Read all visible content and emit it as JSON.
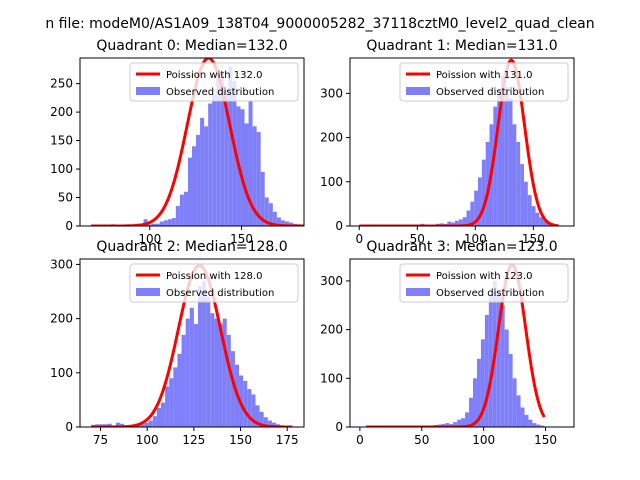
{
  "figure": {
    "suptitle": "n file: modeM0/AS1A09_138T04_9000005282_37118cztM0_level2_quad_clean"
  },
  "colors": {
    "hist": "#7f7ff9",
    "fit": "#ff0000",
    "fit_alpha_peak": "#f08080"
  },
  "chart_data": [
    {
      "type": "histogram+line",
      "title": "Quadrant 0: Median=132.0",
      "median": 132.0,
      "xlim": [
        62,
        184
      ],
      "ylim": [
        0,
        295
      ],
      "xticks": [
        100,
        150
      ],
      "yticks": [
        0,
        50,
        100,
        150,
        200,
        250
      ],
      "legend": [
        "Poission with 132.0",
        "Observed distribution"
      ],
      "legend_position": "top-right",
      "hist_x0": 68,
      "hist_bin_width": 2.2,
      "hist_counts": [
        2,
        2,
        2,
        2,
        2,
        3,
        2,
        2,
        2,
        3,
        2,
        4,
        3,
        12,
        3,
        4,
        4,
        8,
        10,
        12,
        14,
        35,
        55,
        60,
        120,
        140,
        160,
        190,
        175,
        215,
        230,
        260,
        270,
        240,
        280,
        255,
        210,
        205,
        180,
        220,
        175,
        165,
        95,
        50,
        40,
        25,
        15,
        10,
        8,
        6,
        4,
        3,
        2,
        1
      ],
      "fit_peak": 295,
      "fit_sigma": 11.5
    },
    {
      "type": "histogram+line",
      "title": "Quadrant 1: Median=131.0",
      "median": 131.0,
      "xlim": [
        -8,
        185
      ],
      "ylim": [
        0,
        380
      ],
      "xticks": [
        0,
        50,
        100,
        150
      ],
      "yticks": [
        0,
        100,
        200,
        300
      ],
      "legend": [
        "Poission with 131.0",
        "Observed distribution"
      ],
      "legend_position": "top-right",
      "hist_x0": 0,
      "hist_bin_width": 3.3,
      "hist_counts": [
        2,
        1,
        1,
        1,
        1,
        1,
        1,
        2,
        1,
        1,
        1,
        1,
        2,
        2,
        3,
        3,
        5,
        1,
        2,
        3,
        5,
        6,
        5,
        10,
        8,
        12,
        15,
        20,
        35,
        55,
        80,
        110,
        150,
        190,
        230,
        270,
        310,
        340,
        315,
        290,
        230,
        190,
        140,
        100,
        70,
        45,
        30,
        20,
        15,
        8,
        5,
        3
      ],
      "fit_peak": 375,
      "fit_sigma": 11.4
    },
    {
      "type": "histogram+line",
      "title": "Quadrant 2: Median=128.0",
      "median": 128.0,
      "xlim": [
        64,
        184
      ],
      "ylim": [
        0,
        310
      ],
      "xticks": [
        75,
        100,
        125,
        150,
        175
      ],
      "yticks": [
        0,
        100,
        200,
        300
      ],
      "legend": [
        "Poission with 128.0",
        "Observed distribution"
      ],
      "legend_position": "top-right",
      "hist_x0": 70,
      "hist_bin_width": 2.2,
      "hist_counts": [
        4,
        5,
        5,
        5,
        6,
        3,
        8,
        6,
        2,
        3,
        3,
        5,
        5,
        8,
        12,
        20,
        35,
        45,
        75,
        90,
        110,
        135,
        170,
        200,
        220,
        190,
        260,
        270,
        240,
        210,
        200,
        190,
        200,
        170,
        140,
        115,
        95,
        85,
        70,
        60,
        40,
        28,
        18,
        12,
        8,
        5,
        3,
        2,
        1
      ],
      "fit_peak": 298,
      "fit_sigma": 11.3
    },
    {
      "type": "histogram+line",
      "title": "Quadrant 3: Median=123.0",
      "median": 123.0,
      "xlim": [
        -8,
        173
      ],
      "ylim": [
        0,
        345
      ],
      "xticks": [
        0,
        50,
        100,
        150
      ],
      "yticks": [
        0,
        100,
        200,
        300
      ],
      "legend": [
        "Poission with 123.0",
        "Observed distribution"
      ],
      "legend_position": "top-right",
      "hist_x0": 5,
      "hist_bin_width": 3.2,
      "hist_counts": [
        2,
        1,
        1,
        1,
        1,
        1,
        1,
        1,
        1,
        2,
        1,
        1,
        2,
        2,
        2,
        3,
        3,
        4,
        5,
        6,
        8,
        6,
        10,
        15,
        18,
        30,
        60,
        100,
        140,
        180,
        230,
        270,
        300,
        280,
        250,
        200,
        150,
        100,
        65,
        40,
        25,
        15,
        8,
        5,
        3
      ],
      "fit_peak": 333,
      "fit_sigma": 11.0
    }
  ]
}
